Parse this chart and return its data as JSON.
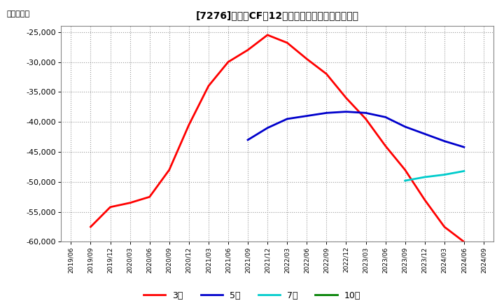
{
  "title": "[7276]　投賄CFの12か月移動合計の平均値の推移",
  "ylabel": "（百万円）",
  "ylim": [
    -60000,
    -24000
  ],
  "yticks": [
    -60000,
    -55000,
    -50000,
    -45000,
    -40000,
    -35000,
    -30000,
    -25000
  ],
  "series": {
    "3year": {
      "label": "3年",
      "color": "#ff0000",
      "x": [
        "2019/09",
        "2019/12",
        "2020/03",
        "2020/06",
        "2020/09",
        "2020/12",
        "2021/03",
        "2021/06",
        "2021/09",
        "2021/12",
        "2022/03",
        "2022/06",
        "2022/09",
        "2022/12",
        "2023/03",
        "2023/06",
        "2023/09",
        "2023/12",
        "2024/03",
        "2024/06"
      ],
      "y": [
        -57500,
        -54200,
        -53500,
        -52500,
        -48000,
        -40500,
        -34000,
        -30000,
        -28000,
        -25500,
        -26800,
        -29500,
        -32000,
        -36000,
        -39500,
        -44000,
        -48000,
        -53000,
        -57500,
        -60000
      ]
    },
    "5year": {
      "label": "5年",
      "color": "#0000cc",
      "x": [
        "2021/09",
        "2021/12",
        "2022/03",
        "2022/06",
        "2022/09",
        "2022/12",
        "2023/03",
        "2023/06",
        "2023/09",
        "2023/12",
        "2024/03",
        "2024/06"
      ],
      "y": [
        -43000,
        -41000,
        -39500,
        -39000,
        -38500,
        -38300,
        -38500,
        -39200,
        -40800,
        -42000,
        -43200,
        -44200
      ]
    },
    "7year": {
      "label": "7年",
      "color": "#00cccc",
      "x": [
        "2023/09",
        "2023/12",
        "2024/03",
        "2024/06"
      ],
      "y": [
        -49800,
        -49200,
        -48800,
        -48200
      ]
    },
    "10year": {
      "label": "10年",
      "color": "#008000",
      "x": [],
      "y": []
    }
  },
  "background_color": "#ffffff",
  "plot_bg_color": "#ffffff",
  "grid_color": "#999999",
  "xtick_labels": [
    "2019/06",
    "2019/09",
    "2019/12",
    "2020/03",
    "2020/06",
    "2020/09",
    "2020/12",
    "2021/03",
    "2021/06",
    "2021/09",
    "2021/12",
    "2022/03",
    "2022/06",
    "2022/09",
    "2022/12",
    "2023/03",
    "2023/06",
    "2023/09",
    "2023/12",
    "2024/03",
    "2024/06",
    "2024/09"
  ]
}
